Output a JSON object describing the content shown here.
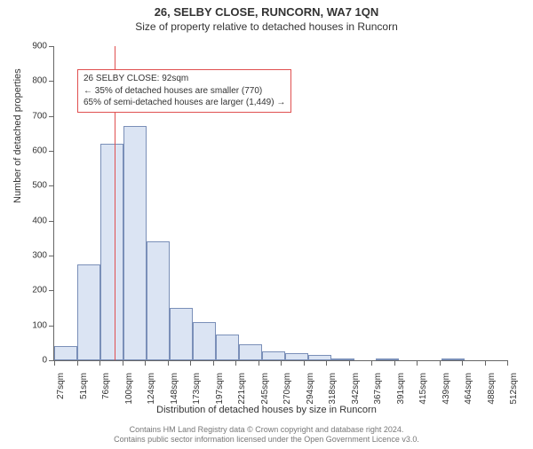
{
  "title": "26, SELBY CLOSE, RUNCORN, WA7 1QN",
  "subtitle": "Size of property relative to detached houses in Runcorn",
  "y_axis_title": "Number of detached properties",
  "x_axis_title": "Distribution of detached houses by size in Runcorn",
  "chart": {
    "type": "histogram",
    "bar_fill": "#dbe4f3",
    "bar_stroke": "#7a8fb8",
    "background_color": "#ffffff",
    "axis_color": "#666666",
    "ref_line_color": "#e05050",
    "ylim": [
      0,
      900
    ],
    "ytick_step": 100,
    "xtick_labels": [
      "27sqm",
      "51sqm",
      "76sqm",
      "100sqm",
      "124sqm",
      "148sqm",
      "173sqm",
      "197sqm",
      "221sqm",
      "245sqm",
      "270sqm",
      "294sqm",
      "318sqm",
      "342sqm",
      "367sqm",
      "391sqm",
      "415sqm",
      "439sqm",
      "464sqm",
      "488sqm",
      "512sqm"
    ],
    "bars": [
      40,
      275,
      620,
      670,
      340,
      150,
      110,
      75,
      45,
      25,
      20,
      15,
      5,
      0,
      3,
      0,
      0,
      5,
      0,
      0
    ],
    "ref_value_sqm": 92,
    "x_min": 27,
    "x_max": 512
  },
  "annotation": {
    "line1": "26 SELBY CLOSE: 92sqm",
    "line2": "← 35% of detached houses are smaller (770)",
    "line3": "65% of semi-detached houses are larger (1,449) →"
  },
  "footer": {
    "line1": "Contains HM Land Registry data © Crown copyright and database right 2024.",
    "line2": "Contains public sector information licensed under the Open Government Licence v3.0."
  }
}
